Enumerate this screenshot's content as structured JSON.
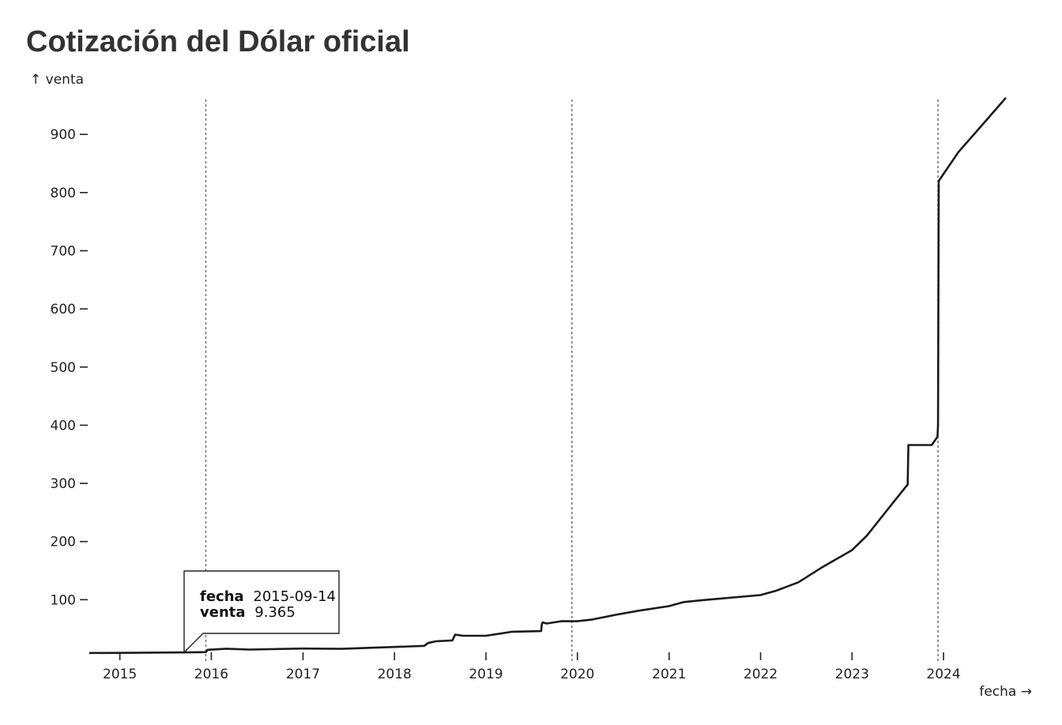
{
  "page": {
    "title": "Cotización del Dólar oficial"
  },
  "tooltip": {
    "key1": "fecha",
    "val1": "2015-09-14",
    "key2": "venta",
    "val2": "9.365"
  },
  "chart_data": {
    "type": "line",
    "title": "Cotización del Dólar oficial",
    "xlabel": "fecha →",
    "ylabel": "↑ venta",
    "xlim": [
      "2014-09-01",
      "2024-09-06"
    ],
    "ylim": [
      0,
      960
    ],
    "x_ticks": [
      "2015",
      "2016",
      "2017",
      "2018",
      "2019",
      "2020",
      "2021",
      "2022",
      "2023",
      "2024"
    ],
    "y_ticks": [
      100,
      200,
      300,
      400,
      500,
      600,
      700,
      800,
      900
    ],
    "grid": false,
    "rule_lines": [
      "2015-12-10",
      "2019-12-10",
      "2023-12-10"
    ],
    "series": [
      {
        "values": [
          [
            "2014-09-01",
            8.4
          ],
          [
            "2015-01-01",
            8.6
          ],
          [
            "2015-09-14",
            9.365
          ],
          [
            "2015-12-10",
            9.9
          ],
          [
            "2015-12-17",
            13.8
          ],
          [
            "2016-03-01",
            15.8
          ],
          [
            "2016-06-01",
            14.2
          ],
          [
            "2017-01-01",
            16.0
          ],
          [
            "2017-06-01",
            15.5
          ],
          [
            "2017-12-31",
            18.8
          ],
          [
            "2018-04-30",
            20.7
          ],
          [
            "2018-05-15",
            25.5
          ],
          [
            "2018-06-15",
            28.5
          ],
          [
            "2018-08-20",
            30.0
          ],
          [
            "2018-08-31",
            40.0
          ],
          [
            "2018-10-01",
            38.0
          ],
          [
            "2019-01-01",
            38.0
          ],
          [
            "2019-04-15",
            45.0
          ],
          [
            "2019-08-09",
            46.0
          ],
          [
            "2019-08-12",
            58.0
          ],
          [
            "2019-08-15",
            61.0
          ],
          [
            "2019-09-01",
            59.0
          ],
          [
            "2019-10-28",
            63.0
          ],
          [
            "2019-12-31",
            63.0
          ],
          [
            "2020-03-01",
            66.0
          ],
          [
            "2020-06-01",
            74.0
          ],
          [
            "2020-09-01",
            81.0
          ],
          [
            "2020-12-31",
            89.0
          ],
          [
            "2021-03-01",
            96.0
          ],
          [
            "2021-06-01",
            100.0
          ],
          [
            "2021-12-31",
            108.0
          ],
          [
            "2022-03-01",
            115.0
          ],
          [
            "2022-06-01",
            130.0
          ],
          [
            "2022-09-01",
            155.0
          ],
          [
            "2022-12-31",
            185.0
          ],
          [
            "2023-03-01",
            210.0
          ],
          [
            "2023-06-01",
            260.0
          ],
          [
            "2023-08-11",
            298.0
          ],
          [
            "2023-08-14",
            366.0
          ],
          [
            "2023-11-15",
            366.0
          ],
          [
            "2023-12-08",
            380.0
          ],
          [
            "2023-12-10",
            400.0
          ],
          [
            "2023-12-13",
            820.0
          ],
          [
            "2024-03-01",
            870.0
          ],
          [
            "2024-06-01",
            915.0
          ],
          [
            "2024-09-06",
            963.0
          ]
        ]
      }
    ]
  }
}
